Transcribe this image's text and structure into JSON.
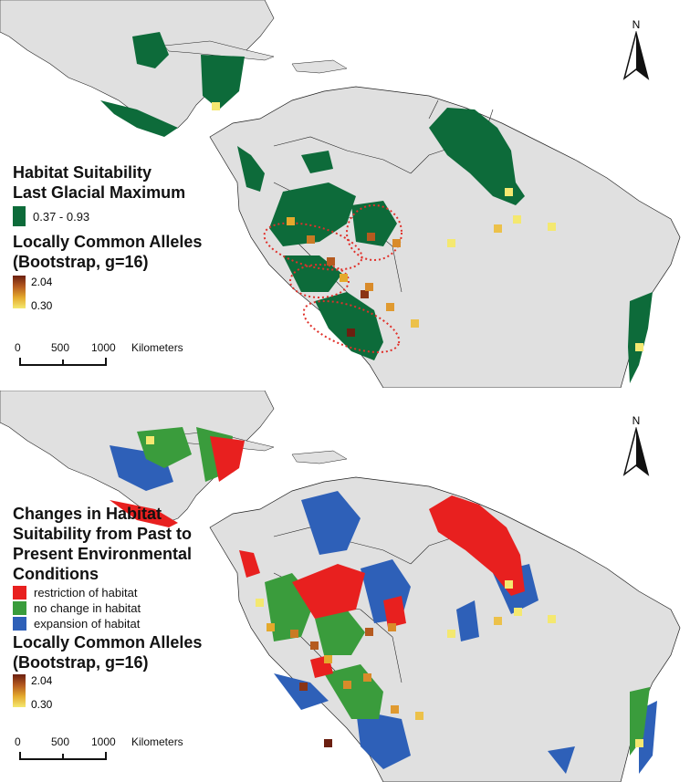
{
  "top_panel": {
    "legend": {
      "title_line1": "Habitat Suitability",
      "title_line2": "Last Glacial Maximum",
      "suitability_range": "0.37 - 0.93",
      "suitability_color": "#0d6b3a",
      "alleles_title_line1": "Locally Common Alleles",
      "alleles_title_line2": "(Bootstrap, g=16)",
      "alleles_max": "2.04",
      "alleles_min": "0.30"
    },
    "scale": {
      "t0": "0",
      "t1": "500",
      "t2": "1000",
      "unit": "Kilometers"
    },
    "north_label": "N"
  },
  "bottom_panel": {
    "legend": {
      "title_line1": "Changes in Habitat",
      "title_line2": "Suitability from Past to",
      "title_line3": "Present Environmental",
      "title_line4": "Conditions",
      "items": [
        {
          "label": "restriction of habitat",
          "color": "#e8201f"
        },
        {
          "label": "no change in habitat",
          "color": "#3a9c3c"
        },
        {
          "label": "expansion of habitat",
          "color": "#2e60b8"
        }
      ],
      "alleles_title_line1": "Locally Common Alleles",
      "alleles_title_line2": "(Bootstrap, g=16)",
      "alleles_max": "2.04",
      "alleles_min": "0.30"
    },
    "scale": {
      "t0": "0",
      "t1": "500",
      "t2": "1000",
      "unit": "Kilometers"
    },
    "north_label": "N"
  },
  "colors": {
    "land": "#e0e0e0",
    "border": "#222222",
    "dotted_outline": "#e0302a"
  }
}
